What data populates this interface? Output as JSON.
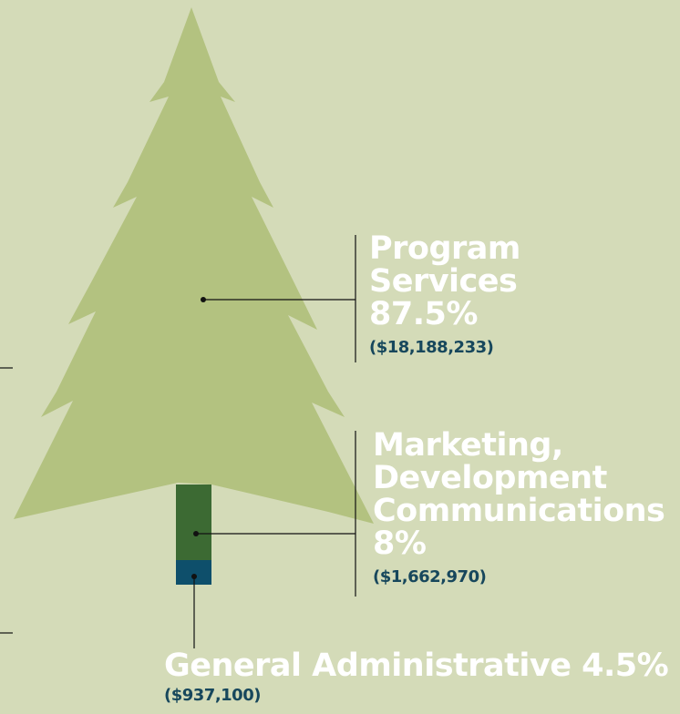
{
  "items": [
    {
      "label": "Program Services",
      "percent": "87.5%",
      "amount": "($18,188,233)"
    },
    {
      "label": "Marketing, Development Communications",
      "percent": "8%",
      "amount": "($1,662,970)"
    },
    {
      "label": "General Administrative",
      "percent": "4.5%",
      "amount": "($937,100)"
    }
  ]
}
